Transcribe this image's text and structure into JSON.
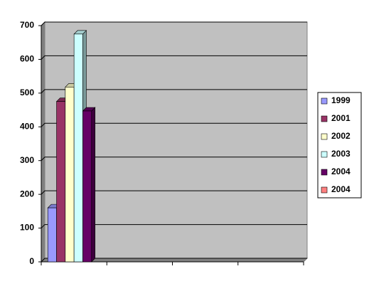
{
  "chart_data": {
    "type": "bar3d",
    "categories": [
      null,
      null,
      null,
      null
    ],
    "series": [
      {
        "name": "1999",
        "color": "#9999ff",
        "values": [
          160,
          null,
          null,
          null
        ]
      },
      {
        "name": "2001",
        "color": "#993366",
        "values": [
          475,
          null,
          null,
          null
        ]
      },
      {
        "name": "2002",
        "color": "#ffffcc",
        "values": [
          518,
          null,
          null,
          null
        ]
      },
      {
        "name": "2003",
        "color": "#ccffff",
        "values": [
          675,
          null,
          null,
          null
        ]
      },
      {
        "name": "2004",
        "color": "#660066",
        "values": [
          447,
          null,
          null,
          null
        ]
      },
      {
        "name": "2004",
        "color": "#ff8080",
        "values": [
          null,
          null,
          null,
          null
        ]
      }
    ],
    "ylim": [
      0,
      700
    ],
    "yticks": [
      0,
      100,
      200,
      300,
      400,
      500,
      600,
      700
    ],
    "grid": true,
    "legend": "right"
  }
}
